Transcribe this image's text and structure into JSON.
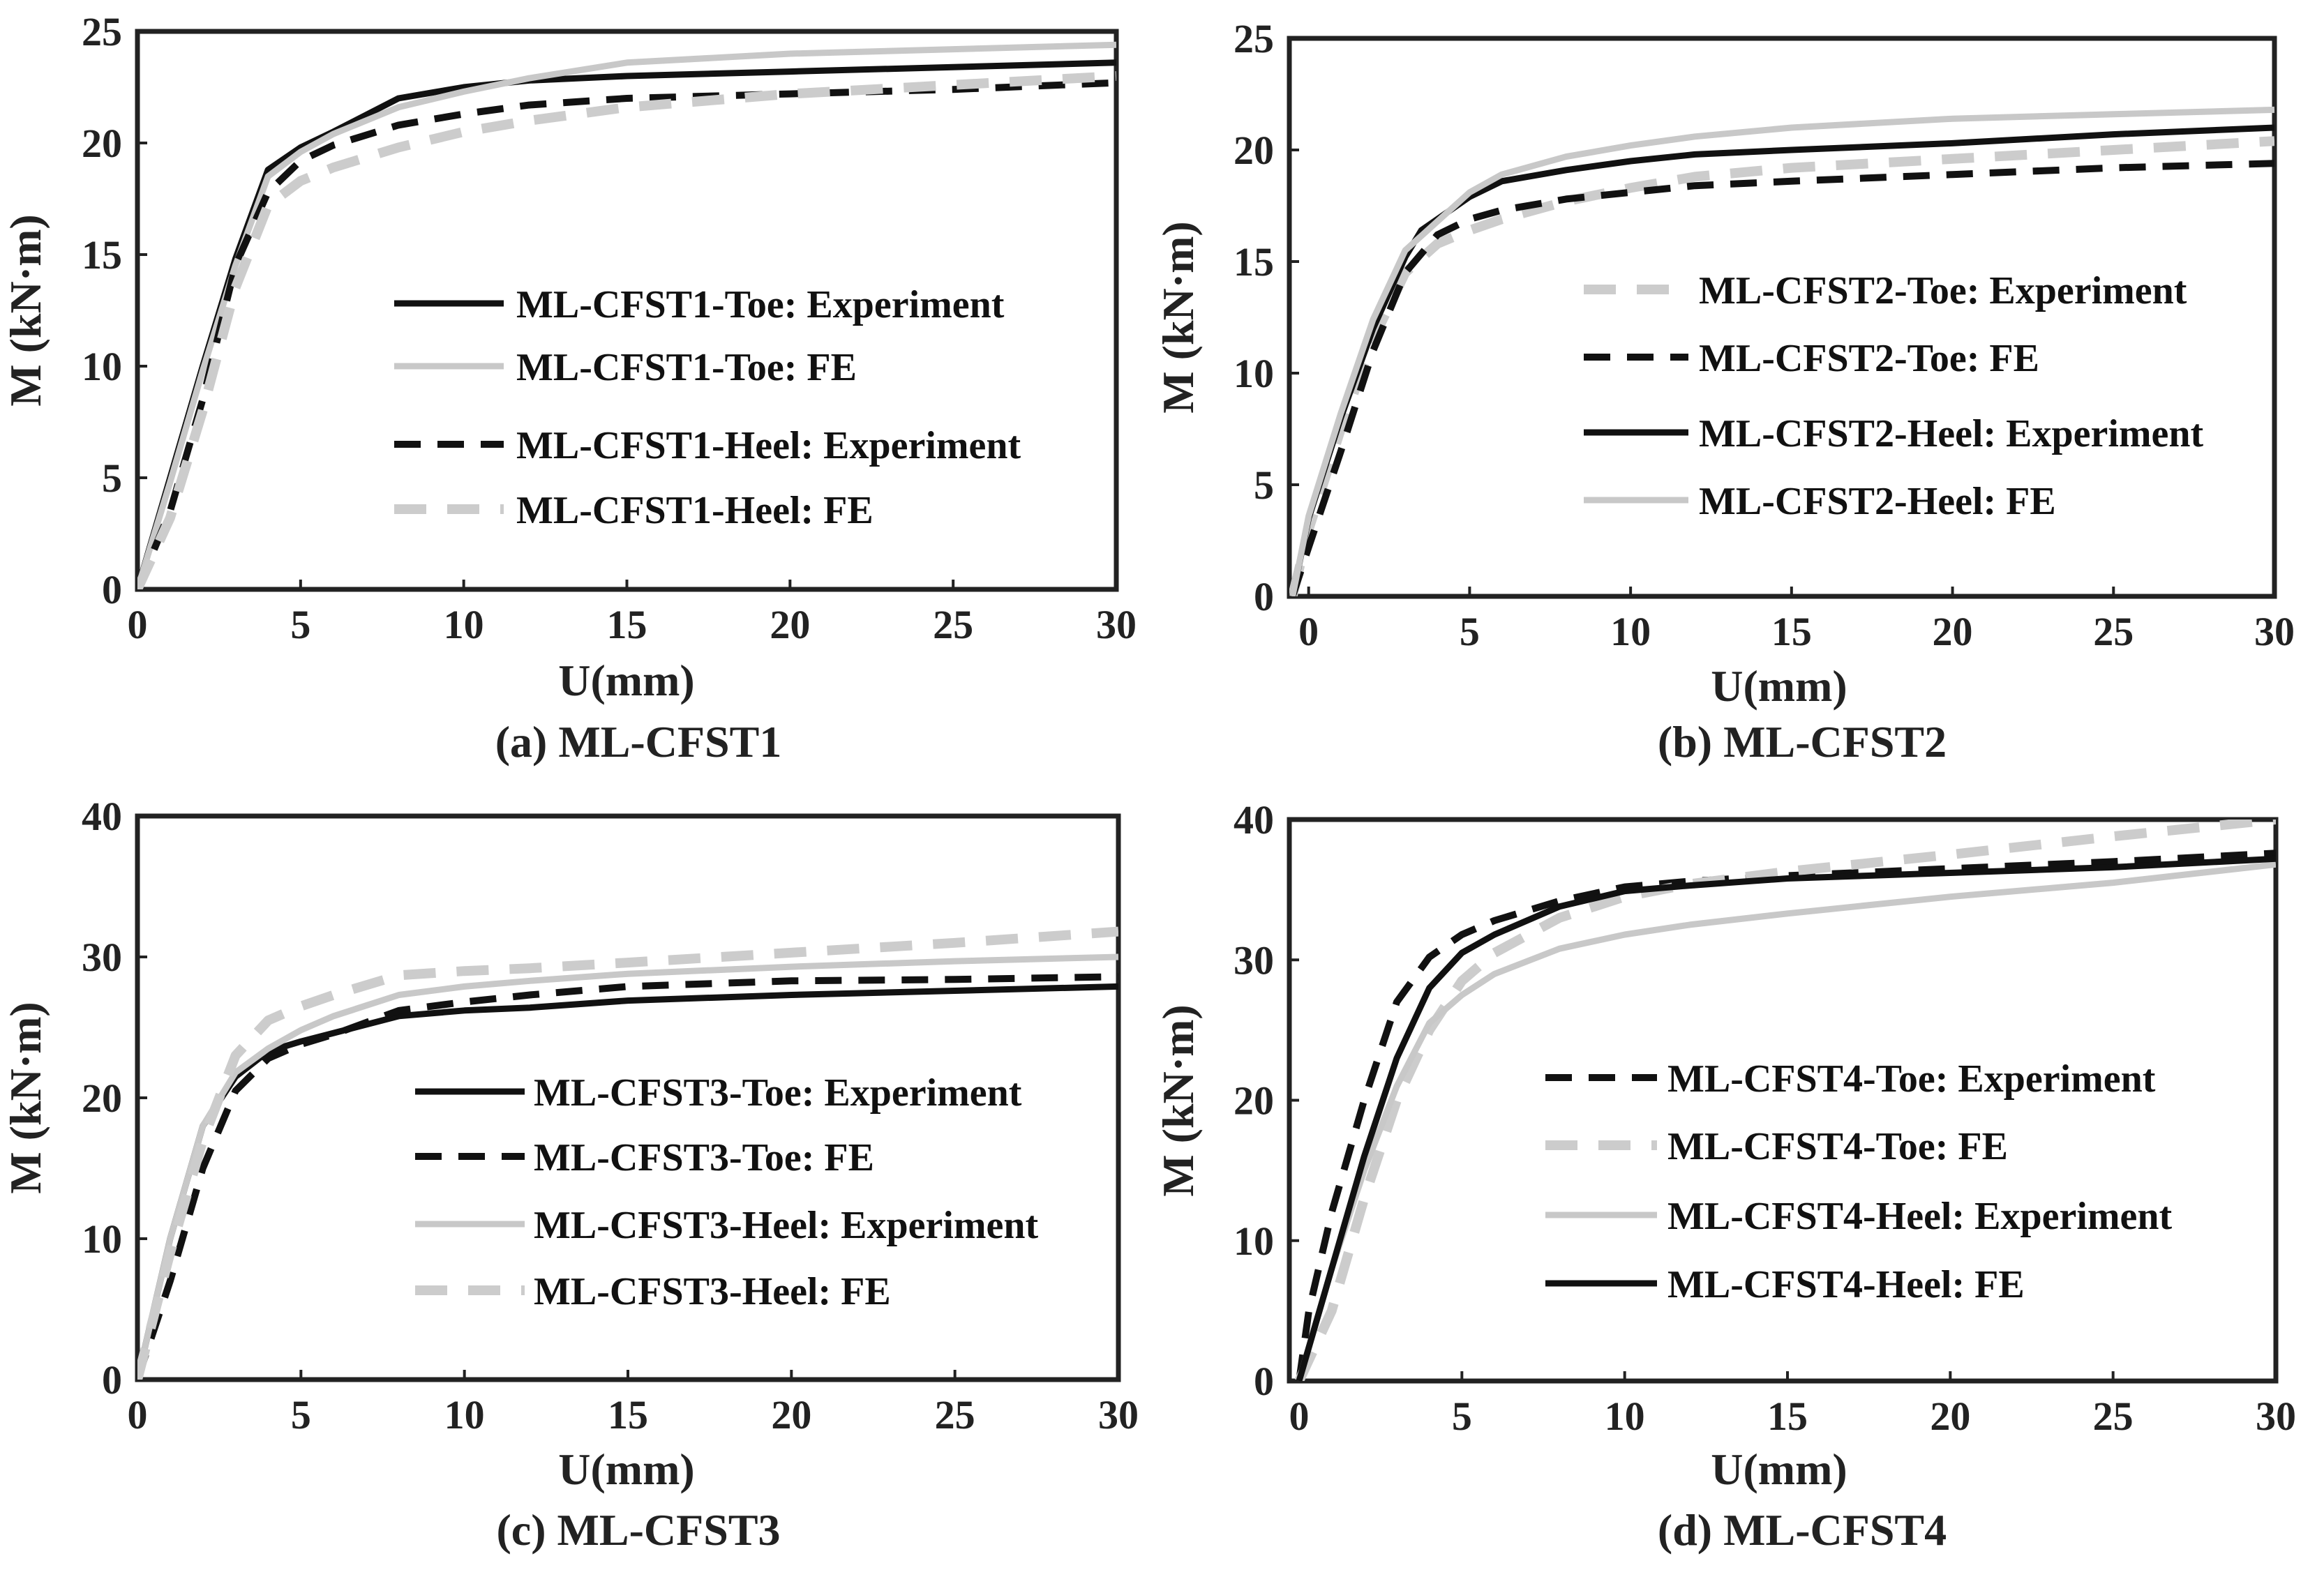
{
  "colors": {
    "black": "#111111",
    "gray": "#c8c8c8",
    "dashgray": "#cccccc"
  },
  "chart_data": [
    {
      "type": "line",
      "caption": "(a) ML-CFST1",
      "xlabel": "U(mm)",
      "ylabel": "M (kN·m)",
      "xlim": [
        0,
        30
      ],
      "ylim": [
        0,
        25
      ],
      "xticks": [
        "0",
        "5",
        "10",
        "15",
        "20",
        "25",
        "30"
      ],
      "yticks": [
        "0",
        "5",
        "10",
        "15",
        "20",
        "25"
      ],
      "series": [
        {
          "name": "ML-CFST1-Toe: Experiment",
          "style": "solid-black",
          "x": [
            0,
            1,
            2,
            3,
            4,
            5,
            6,
            8,
            10,
            12,
            15,
            20,
            25,
            30
          ],
          "y": [
            0,
            5,
            10,
            14.8,
            18.8,
            19.8,
            20.5,
            22,
            22.5,
            22.8,
            23,
            23.2,
            23.4,
            23.6
          ]
        },
        {
          "name": "ML-CFST1-Toe: FE",
          "style": "solid-gray",
          "x": [
            0,
            1,
            2,
            3,
            4,
            5,
            6,
            8,
            10,
            12,
            15,
            20,
            25,
            30
          ],
          "y": [
            0,
            4.8,
            9.8,
            14.5,
            18.5,
            19.6,
            20.4,
            21.6,
            22.3,
            22.9,
            23.6,
            24,
            24.2,
            24.4
          ]
        },
        {
          "name": "ML-CFST1-Heel: Experiment",
          "style": "dashed-black",
          "x": [
            0,
            1,
            2,
            3,
            4,
            5,
            6,
            8,
            10,
            12,
            15,
            20,
            25,
            30
          ],
          "y": [
            0,
            3.5,
            8.5,
            14.5,
            17.8,
            19.2,
            19.9,
            20.8,
            21.3,
            21.7,
            22,
            22.2,
            22.4,
            22.7
          ]
        },
        {
          "name": "ML-CFST1-Heel: FE",
          "style": "dashed-gray",
          "x": [
            0,
            1,
            2,
            3,
            4,
            5,
            6,
            8,
            10,
            12,
            15,
            20,
            25,
            30
          ],
          "y": [
            0,
            3.2,
            8,
            13.5,
            17.2,
            18.3,
            18.9,
            19.8,
            20.5,
            21,
            21.6,
            22.2,
            22.6,
            23
          ]
        }
      ]
    },
    {
      "type": "line",
      "caption": "(b) ML-CFST2",
      "xlabel": "U(mm)",
      "ylabel": "M (kN·m)",
      "xlim": [
        -0.6,
        30
      ],
      "ylim": [
        0,
        25
      ],
      "xticks": [
        "0",
        "5",
        "10",
        "15",
        "20",
        "25",
        "30"
      ],
      "yticks": [
        "0",
        "5",
        "10",
        "15",
        "20",
        "25"
      ],
      "series": [
        {
          "name": "ML-CFST2-Toe: Experiment",
          "style": "dashed-gray",
          "x": [
            -0.5,
            0,
            1,
            2,
            3,
            4,
            5,
            6,
            8,
            10,
            12,
            15,
            20,
            25,
            30
          ],
          "y": [
            0,
            3,
            7.5,
            11.5,
            14.5,
            15.8,
            16.4,
            16.9,
            17.7,
            18.3,
            18.8,
            19.2,
            19.6,
            20,
            20.4
          ]
        },
        {
          "name": "ML-CFST2-Toe: FE",
          "style": "dashed-black",
          "x": [
            -0.5,
            0,
            1,
            2,
            3,
            4,
            5,
            6,
            8,
            10,
            12,
            15,
            20,
            25,
            30
          ],
          "y": [
            0,
            2.2,
            6.5,
            11,
            14.5,
            16.2,
            16.9,
            17.3,
            17.8,
            18.1,
            18.4,
            18.6,
            18.9,
            19.2,
            19.4
          ]
        },
        {
          "name": "ML-CFST2-Heel: Experiment",
          "style": "solid-black",
          "x": [
            -0.5,
            0,
            1,
            2,
            3,
            3.5,
            5,
            6,
            8,
            10,
            12,
            15,
            20,
            25,
            30
          ],
          "y": [
            0,
            3.5,
            8,
            12,
            15.2,
            16.4,
            17.9,
            18.6,
            19.1,
            19.5,
            19.8,
            20,
            20.3,
            20.7,
            21
          ]
        },
        {
          "name": "ML-CFST2-Heel: FE",
          "style": "solid-gray",
          "x": [
            -0.5,
            0,
            1,
            2,
            3,
            4,
            5,
            6,
            8,
            10,
            12,
            15,
            20,
            25,
            30
          ],
          "y": [
            0,
            3.6,
            8.2,
            12.4,
            15.5,
            16.8,
            18.1,
            18.9,
            19.7,
            20.2,
            20.6,
            21,
            21.4,
            21.6,
            21.8
          ]
        }
      ]
    },
    {
      "type": "line",
      "caption": "(c) ML-CFST3",
      "xlabel": "U(mm)",
      "ylabel": "M (kN·m)",
      "xlim": [
        0,
        30
      ],
      "ylim": [
        0,
        40
      ],
      "xticks": [
        "0",
        "5",
        "10",
        "15",
        "20",
        "25",
        "30"
      ],
      "yticks": [
        "0",
        "10",
        "20",
        "30",
        "40"
      ],
      "series": [
        {
          "name": "ML-CFST3-Toe: Experiment",
          "style": "solid-black",
          "x": [
            0,
            1,
            2,
            3,
            4,
            5,
            6,
            8,
            10,
            12,
            15,
            20,
            25,
            30
          ],
          "y": [
            0,
            10,
            18,
            21.5,
            23.3,
            24,
            24.6,
            25.8,
            26.2,
            26.4,
            26.9,
            27.3,
            27.6,
            27.9
          ]
        },
        {
          "name": "ML-CFST3-Toe: FE",
          "style": "dashed-black",
          "x": [
            0,
            1,
            2,
            3,
            4,
            5,
            6,
            8,
            10,
            12,
            15,
            20,
            25,
            30
          ],
          "y": [
            0,
            7,
            15,
            20.5,
            22.8,
            23.8,
            24.5,
            26.2,
            26.8,
            27.3,
            27.9,
            28.3,
            28.4,
            28.6
          ]
        },
        {
          "name": "ML-CFST3-Heel: Experiment",
          "style": "solid-gray",
          "x": [
            0,
            1,
            2,
            3,
            4,
            5,
            6,
            8,
            10,
            12,
            15,
            20,
            25,
            30
          ],
          "y": [
            0,
            10,
            18,
            21.8,
            23.5,
            24.8,
            25.8,
            27.3,
            27.9,
            28.3,
            28.8,
            29.3,
            29.7,
            30
          ]
        },
        {
          "name": "ML-CFST3-Heel: FE",
          "style": "dashed-gray",
          "x": [
            0,
            1,
            2,
            3,
            4,
            5,
            6,
            8,
            10,
            12,
            15,
            20,
            25,
            30
          ],
          "y": [
            0,
            9,
            17,
            23,
            25.5,
            26.5,
            27.3,
            28.7,
            29,
            29.2,
            29.6,
            30.3,
            31,
            31.8
          ]
        }
      ]
    },
    {
      "type": "line",
      "caption": "(d) ML-CFST4",
      "xlabel": "U(mm)",
      "ylabel": "M (kN·m)",
      "xlim": [
        -0.3,
        30
      ],
      "ylim": [
        0,
        40
      ],
      "xticks": [
        "0",
        "5",
        "10",
        "15",
        "20",
        "25",
        "30"
      ],
      "yticks": [
        "0",
        "10",
        "20",
        "30",
        "40"
      ],
      "series": [
        {
          "name": "ML-CFST4-Toe: Experiment",
          "style": "dashed-black",
          "x": [
            0,
            0.3,
            1,
            2,
            3,
            4,
            5,
            6,
            8,
            10,
            12,
            15,
            20,
            25,
            30
          ],
          "y": [
            0,
            5,
            12,
            20,
            27,
            30.2,
            31.8,
            32.8,
            34.2,
            35.2,
            35.6,
            36,
            36.5,
            37,
            37.6
          ]
        },
        {
          "name": "ML-CFST4-Toe: FE",
          "style": "dashed-gray",
          "x": [
            0,
            1,
            2,
            3,
            4,
            5,
            6,
            8,
            10,
            12,
            15,
            20,
            25,
            30
          ],
          "y": [
            0,
            5,
            13,
            20,
            25,
            28.5,
            30.5,
            33,
            34.5,
            35.4,
            36.3,
            37.5,
            38.8,
            40
          ]
        },
        {
          "name": "ML-CFST4-Heel: Experiment",
          "style": "solid-gray",
          "x": [
            0,
            1,
            2,
            3,
            4,
            5,
            6,
            8,
            10,
            12,
            15,
            20,
            25,
            30
          ],
          "y": [
            0,
            8,
            15,
            21,
            25.5,
            27.5,
            29,
            30.8,
            31.8,
            32.5,
            33.3,
            34.5,
            35.5,
            36.8
          ]
        },
        {
          "name": "ML-CFST4-Heel: FE",
          "style": "solid-black",
          "x": [
            0,
            1,
            2,
            3,
            4,
            5,
            6,
            8,
            10,
            12,
            15,
            20,
            25,
            30
          ],
          "y": [
            0,
            8,
            16,
            23,
            28,
            30.5,
            31.8,
            33.8,
            34.9,
            35.3,
            35.8,
            36.2,
            36.6,
            37.2
          ]
        }
      ]
    }
  ]
}
